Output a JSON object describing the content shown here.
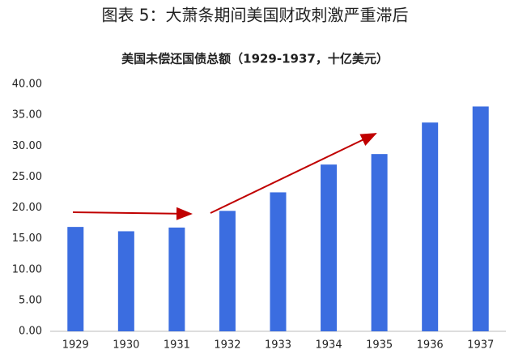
{
  "chart_data": {
    "type": "bar",
    "title": "图表 5：大萧条期间美国财政刺激严重滞后",
    "subtitle": "美国未偿还国债总额（1929-1937，十亿美元）",
    "categories": [
      "1929",
      "1930",
      "1931",
      "1932",
      "1933",
      "1934",
      "1935",
      "1936",
      "1937"
    ],
    "values": [
      16.9,
      16.2,
      16.8,
      19.5,
      22.5,
      27.0,
      28.7,
      33.8,
      36.4
    ],
    "color": "#3b6de0",
    "ylim": [
      0,
      40
    ],
    "yticks": [
      {
        "value": 0,
        "label": "0.00"
      },
      {
        "value": 5,
        "label": "5.00"
      },
      {
        "value": 10,
        "label": "10.00"
      },
      {
        "value": 15,
        "label": "15.00"
      },
      {
        "value": 20,
        "label": "20.00"
      },
      {
        "value": 25,
        "label": "25.00"
      },
      {
        "value": 30,
        "label": "30.00"
      },
      {
        "value": 35,
        "label": "35.00"
      },
      {
        "value": 40,
        "label": "40.00"
      }
    ],
    "grid": false
  }
}
